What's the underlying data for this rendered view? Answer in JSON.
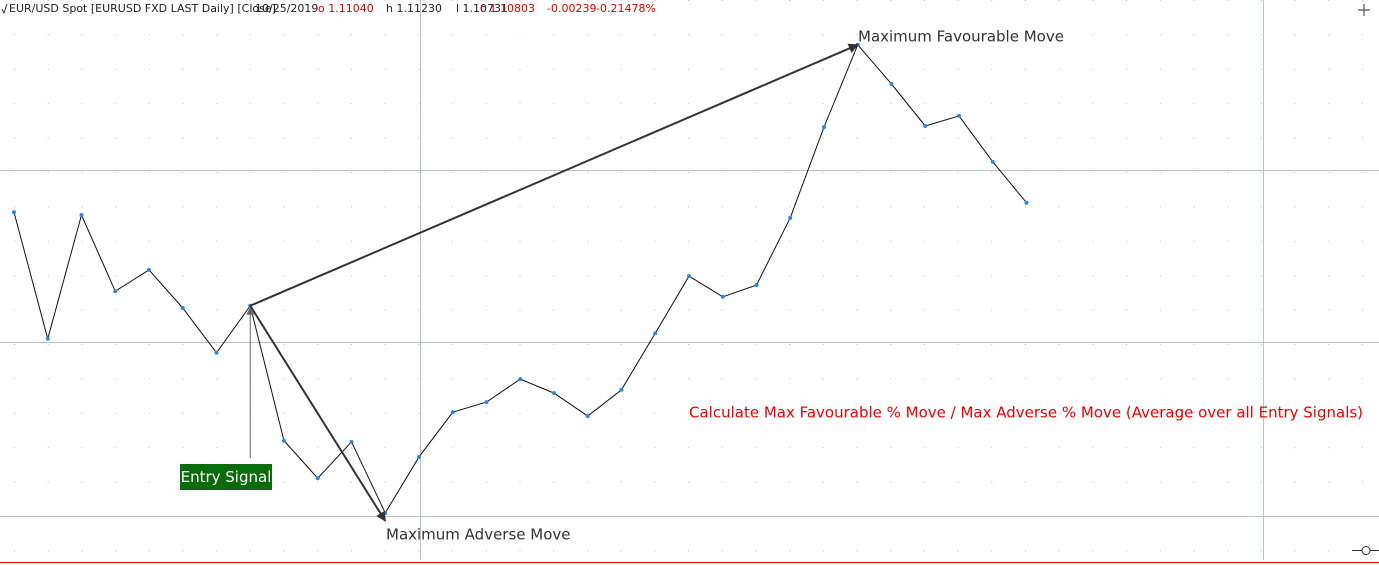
{
  "header": {
    "instrument": "EUR/USD Spot [EURUSD FXD LAST Daily] [Close]",
    "date": "10/25/2019",
    "open": "o 1.11040",
    "high": "h 1.11230",
    "low": "l 1.10731",
    "close": "c 1.10803",
    "change": "-0.00239",
    "change_pct": "-0.21478%"
  },
  "chart_data": {
    "type": "line",
    "categories": [
      null,
      null,
      null,
      null,
      null,
      null,
      null,
      null,
      null,
      null,
      null,
      null,
      null,
      null,
      null,
      null,
      null,
      null,
      null,
      null,
      null,
      null,
      null,
      null,
      null,
      null,
      null,
      null,
      null,
      null,
      null
    ],
    "series": [
      {
        "name": null,
        "color": "#2e86de",
        "values": [
          62.1,
          39.5,
          61.6,
          48.0,
          51.8,
          45.0,
          37.0,
          45.4,
          21.3,
          14.6,
          21.1,
          8.4,
          18.4,
          26.4,
          28.2,
          32.3,
          29.8,
          25.7,
          30.4,
          40.5,
          50.7,
          47.0,
          49.1,
          61.1,
          77.3,
          92.0,
          85.0,
          77.5,
          79.3,
          71.1,
          63.8
        ]
      }
    ],
    "ylim": [
      0,
      100
    ],
    "annotations": {
      "favourable": "Maximum Favourable Move",
      "adverse": "Maximum Adverse Move",
      "entry": "Entry Signal",
      "note": "Calculate Max Favourable % Move / Max Adverse % Move (Average over all Entry Signals)"
    }
  }
}
